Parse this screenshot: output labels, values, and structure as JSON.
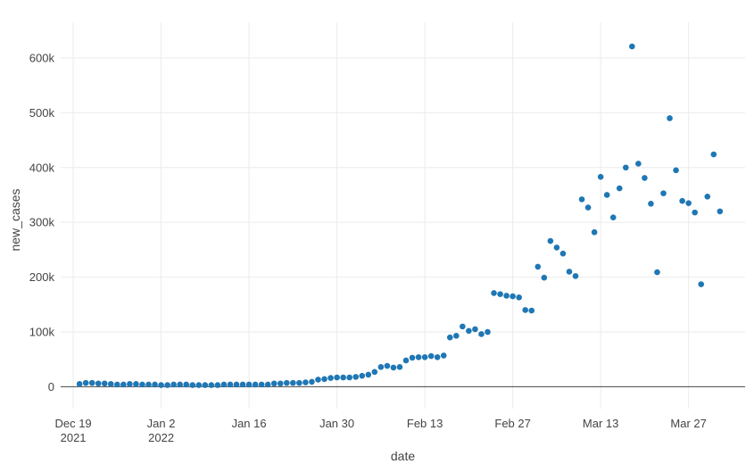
{
  "chart_data": {
    "type": "scatter",
    "xlabel": "date",
    "ylabel": "new_cases",
    "x_range": [
      "2021-12-17",
      "2022-04-05"
    ],
    "ylim": [
      -40000,
      665000
    ],
    "y_ticks": [
      0,
      100000,
      200000,
      300000,
      400000,
      500000,
      600000
    ],
    "y_tick_labels": [
      "0",
      "100k",
      "200k",
      "300k",
      "400k",
      "500k",
      "600k"
    ],
    "x_ticks": [
      "2021-12-19",
      "2022-01-02",
      "2022-01-16",
      "2022-01-30",
      "2022-02-13",
      "2022-02-27",
      "2022-03-13",
      "2022-03-27"
    ],
    "x_tick_labels": [
      [
        "Dec 19",
        "2021"
      ],
      [
        "Jan 2",
        "2022"
      ],
      [
        "Jan 16"
      ],
      [
        "Jan 30"
      ],
      [
        "Feb 13"
      ],
      [
        "Feb 27"
      ],
      [
        "Mar 13"
      ],
      [
        "Mar 27"
      ]
    ],
    "grid": true,
    "marker_color": "#1f77b4",
    "start_date": "2021-12-20",
    "points": [
      {
        "x": "2021-12-20",
        "y": 5000
      },
      {
        "x": "2021-12-21",
        "y": 7000
      },
      {
        "x": "2021-12-22",
        "y": 7000
      },
      {
        "x": "2021-12-23",
        "y": 6000
      },
      {
        "x": "2021-12-24",
        "y": 6000
      },
      {
        "x": "2021-12-25",
        "y": 5000
      },
      {
        "x": "2021-12-26",
        "y": 4000
      },
      {
        "x": "2021-12-27",
        "y": 4000
      },
      {
        "x": "2021-12-28",
        "y": 5000
      },
      {
        "x": "2021-12-29",
        "y": 5000
      },
      {
        "x": "2021-12-30",
        "y": 4000
      },
      {
        "x": "2021-12-31",
        "y": 4000
      },
      {
        "x": "2022-01-01",
        "y": 4000
      },
      {
        "x": "2022-01-02",
        "y": 3000
      },
      {
        "x": "2022-01-03",
        "y": 3000
      },
      {
        "x": "2022-01-04",
        "y": 4000
      },
      {
        "x": "2022-01-05",
        "y": 4000
      },
      {
        "x": "2022-01-06",
        "y": 4000
      },
      {
        "x": "2022-01-07",
        "y": 3000
      },
      {
        "x": "2022-01-08",
        "y": 3000
      },
      {
        "x": "2022-01-09",
        "y": 3000
      },
      {
        "x": "2022-01-10",
        "y": 3000
      },
      {
        "x": "2022-01-11",
        "y": 3000
      },
      {
        "x": "2022-01-12",
        "y": 4000
      },
      {
        "x": "2022-01-13",
        "y": 4000
      },
      {
        "x": "2022-01-14",
        "y": 4000
      },
      {
        "x": "2022-01-15",
        "y": 4000
      },
      {
        "x": "2022-01-16",
        "y": 4000
      },
      {
        "x": "2022-01-17",
        "y": 4000
      },
      {
        "x": "2022-01-18",
        "y": 4000
      },
      {
        "x": "2022-01-19",
        "y": 4000
      },
      {
        "x": "2022-01-20",
        "y": 6000
      },
      {
        "x": "2022-01-21",
        "y": 6000
      },
      {
        "x": "2022-01-22",
        "y": 7000
      },
      {
        "x": "2022-01-23",
        "y": 7000
      },
      {
        "x": "2022-01-24",
        "y": 7000
      },
      {
        "x": "2022-01-25",
        "y": 8000
      },
      {
        "x": "2022-01-26",
        "y": 9000
      },
      {
        "x": "2022-01-27",
        "y": 13000
      },
      {
        "x": "2022-01-28",
        "y": 14000
      },
      {
        "x": "2022-01-29",
        "y": 16000
      },
      {
        "x": "2022-01-30",
        "y": 17000
      },
      {
        "x": "2022-01-31",
        "y": 17000
      },
      {
        "x": "2022-02-01",
        "y": 17000
      },
      {
        "x": "2022-02-02",
        "y": 18000
      },
      {
        "x": "2022-02-03",
        "y": 20000
      },
      {
        "x": "2022-02-04",
        "y": 22000
      },
      {
        "x": "2022-02-05",
        "y": 27000
      },
      {
        "x": "2022-02-06",
        "y": 36000
      },
      {
        "x": "2022-02-07",
        "y": 38000
      },
      {
        "x": "2022-02-08",
        "y": 35000
      },
      {
        "x": "2022-02-09",
        "y": 36000
      },
      {
        "x": "2022-02-10",
        "y": 48000
      },
      {
        "x": "2022-02-11",
        "y": 53000
      },
      {
        "x": "2022-02-12",
        "y": 54000
      },
      {
        "x": "2022-02-13",
        "y": 54000
      },
      {
        "x": "2022-02-14",
        "y": 56000
      },
      {
        "x": "2022-02-15",
        "y": 54000
      },
      {
        "x": "2022-02-16",
        "y": 57000
      },
      {
        "x": "2022-02-17",
        "y": 90000
      },
      {
        "x": "2022-02-18",
        "y": 93000
      },
      {
        "x": "2022-02-19",
        "y": 110000
      },
      {
        "x": "2022-02-20",
        "y": 102000
      },
      {
        "x": "2022-02-21",
        "y": 105000
      },
      {
        "x": "2022-02-22",
        "y": 96000
      },
      {
        "x": "2022-02-23",
        "y": 100000
      },
      {
        "x": "2022-02-24",
        "y": 171000
      },
      {
        "x": "2022-02-25",
        "y": 169000
      },
      {
        "x": "2022-02-26",
        "y": 166000
      },
      {
        "x": "2022-02-27",
        "y": 165000
      },
      {
        "x": "2022-02-28",
        "y": 163000
      },
      {
        "x": "2022-03-01",
        "y": 140000
      },
      {
        "x": "2022-03-02",
        "y": 139000
      },
      {
        "x": "2022-03-03",
        "y": 219000
      },
      {
        "x": "2022-03-04",
        "y": 199000
      },
      {
        "x": "2022-03-05",
        "y": 266000
      },
      {
        "x": "2022-03-06",
        "y": 254000
      },
      {
        "x": "2022-03-07",
        "y": 243000
      },
      {
        "x": "2022-03-08",
        "y": 210000
      },
      {
        "x": "2022-03-09",
        "y": 202000
      },
      {
        "x": "2022-03-10",
        "y": 342000
      },
      {
        "x": "2022-03-11",
        "y": 327000
      },
      {
        "x": "2022-03-12",
        "y": 282000
      },
      {
        "x": "2022-03-13",
        "y": 383000
      },
      {
        "x": "2022-03-14",
        "y": 350000
      },
      {
        "x": "2022-03-15",
        "y": 309000
      },
      {
        "x": "2022-03-16",
        "y": 362000
      },
      {
        "x": "2022-03-17",
        "y": 400000
      },
      {
        "x": "2022-03-18",
        "y": 621000
      },
      {
        "x": "2022-03-19",
        "y": 407000
      },
      {
        "x": "2022-03-20",
        "y": 381000
      },
      {
        "x": "2022-03-21",
        "y": 334000
      },
      {
        "x": "2022-03-22",
        "y": 209000
      },
      {
        "x": "2022-03-23",
        "y": 353000
      },
      {
        "x": "2022-03-24",
        "y": 490000
      },
      {
        "x": "2022-03-25",
        "y": 395000
      },
      {
        "x": "2022-03-26",
        "y": 339000
      },
      {
        "x": "2022-03-27",
        "y": 335000
      },
      {
        "x": "2022-03-28",
        "y": 318000
      },
      {
        "x": "2022-03-29",
        "y": 187000
      },
      {
        "x": "2022-03-30",
        "y": 347000
      },
      {
        "x": "2022-03-31",
        "y": 424000
      },
      {
        "x": "2022-04-01",
        "y": 320000
      }
    ]
  }
}
